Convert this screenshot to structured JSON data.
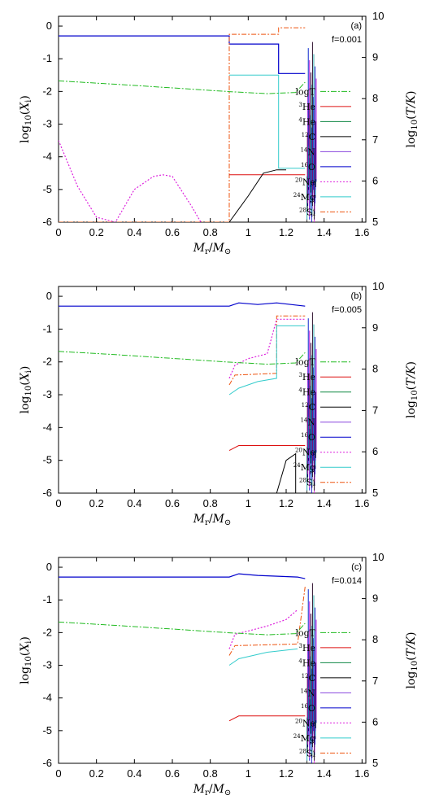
{
  "legend": [
    {
      "name": "logT",
      "mass": "",
      "label": "logT",
      "color": "#22bb22",
      "dash": "7 2 2 2",
      "width": 1
    },
    {
      "name": "3He",
      "mass": "3",
      "label": "He",
      "color": "#dd1111",
      "dash": "",
      "width": 1
    },
    {
      "name": "4He",
      "mass": "4",
      "label": "He",
      "color": "#118844",
      "dash": "",
      "width": 1
    },
    {
      "name": "12C",
      "mass": "12",
      "label": "C",
      "color": "#000000",
      "dash": "",
      "width": 1
    },
    {
      "name": "14N",
      "mass": "14",
      "label": "N",
      "color": "#8844dd",
      "dash": "",
      "width": 1
    },
    {
      "name": "16O",
      "mass": "16",
      "label": "O",
      "color": "#0000cc",
      "dash": "",
      "width": 1.2
    },
    {
      "name": "20Ne",
      "mass": "20",
      "label": "Ne",
      "color": "#dd22dd",
      "dash": "2 2",
      "width": 1.2
    },
    {
      "name": "24Mg",
      "mass": "24",
      "label": "Mg",
      "color": "#33cccc",
      "dash": "",
      "width": 1
    },
    {
      "name": "28Si",
      "mass": "28",
      "label": "Si",
      "color": "#ee5511",
      "dash": "6 2 2 2",
      "width": 1
    }
  ],
  "axes": {
    "xlabel": "M_r/M_⊙",
    "ylabel_left": "log10(X_i)",
    "ylabel_right": "log10(T/K)",
    "xlim": [
      0,
      1.62
    ],
    "ylim_left": [
      -6,
      0.3
    ],
    "ylim_right": [
      5,
      10
    ],
    "xticks": [
      "0",
      "0.2",
      "0.4",
      "0.6",
      "0.8",
      "1",
      "1.2",
      "1.4",
      "1.6"
    ],
    "yticks_left": [
      "0",
      "-1",
      "-2",
      "-3",
      "-4",
      "-5",
      "-6"
    ],
    "yticks_right": [
      "10",
      "9",
      "8",
      "7",
      "6",
      "5"
    ]
  },
  "chart_data": [
    {
      "type": "line",
      "panel": "(a)",
      "f_label": "f=0.001",
      "series": [
        {
          "name": "16O",
          "x": [
            0,
            0.9,
            0.9,
            1.16,
            1.16,
            1.3
          ],
          "y": [
            -0.3,
            -0.3,
            -0.55,
            -0.55,
            -1.45,
            -1.45
          ]
        },
        {
          "name": "28Si",
          "x": [
            0,
            0.9,
            0.9,
            1.16,
            1.16,
            1.3
          ],
          "y": [
            -6,
            -6,
            -0.25,
            -0.25,
            -0.05,
            -0.05
          ]
        },
        {
          "name": "24Mg",
          "x": [
            0.9,
            1.16,
            1.16,
            1.3
          ],
          "y": [
            -1.5,
            -1.5,
            -4.35,
            -4.35
          ]
        },
        {
          "name": "3He",
          "x": [
            0.9,
            1.3
          ],
          "y": [
            -4.55,
            -4.55
          ]
        },
        {
          "name": "12C",
          "x": [
            0.9,
            1.0,
            1.08,
            1.15,
            1.2
          ],
          "y": [
            -6,
            -5.2,
            -4.5,
            -4.4,
            -4.4
          ]
        },
        {
          "name": "20Ne",
          "x": [
            0,
            0.1,
            0.2,
            0.3,
            0.4,
            0.5,
            0.55,
            0.6,
            0.7,
            0.75
          ],
          "y": [
            -3.5,
            -4.9,
            -5.85,
            -6,
            -5,
            -4.6,
            -4.55,
            -4.6,
            -5.5,
            -6
          ]
        },
        {
          "name": "logT",
          "x": [
            0,
            0.3,
            0.6,
            0.9,
            1.1,
            1.25,
            1.3
          ],
          "y": [
            8.43,
            8.35,
            8.26,
            8.17,
            8.12,
            8.15,
            8.4
          ]
        }
      ]
    },
    {
      "type": "line",
      "panel": "(b)",
      "f_label": "f=0.005",
      "series": [
        {
          "name": "16O",
          "x": [
            0,
            0.9,
            0.95,
            1.05,
            1.15,
            1.3
          ],
          "y": [
            -0.3,
            -0.3,
            -0.2,
            -0.25,
            -0.2,
            -0.3
          ]
        },
        {
          "name": "20Ne",
          "x": [
            0.9,
            0.93,
            1.0,
            1.1,
            1.15,
            1.3
          ],
          "y": [
            -2.5,
            -2.1,
            -1.9,
            -1.75,
            -0.7,
            -0.7
          ]
        },
        {
          "name": "28Si",
          "x": [
            0.9,
            0.93,
            1.15,
            1.15,
            1.3
          ],
          "y": [
            -2.7,
            -2.4,
            -2.35,
            -0.6,
            -0.6
          ]
        },
        {
          "name": "24Mg",
          "x": [
            0.9,
            0.95,
            1.05,
            1.15,
            1.15,
            1.3
          ],
          "y": [
            -3.0,
            -2.8,
            -2.6,
            -2.5,
            -0.9,
            -0.9
          ]
        },
        {
          "name": "3He",
          "x": [
            0.9,
            0.95,
            1.3
          ],
          "y": [
            -4.7,
            -4.55,
            -4.55
          ]
        },
        {
          "name": "12C",
          "x": [
            1.15,
            1.2,
            1.25,
            1.25
          ],
          "y": [
            -6,
            -5.0,
            -4.8,
            -6
          ]
        },
        {
          "name": "logT",
          "x": [
            0,
            0.3,
            0.6,
            0.9,
            1.1,
            1.25,
            1.3
          ],
          "y": [
            8.43,
            8.35,
            8.26,
            8.17,
            8.12,
            8.15,
            8.4
          ]
        }
      ]
    },
    {
      "type": "line",
      "panel": "(c)",
      "f_label": "f=0.014",
      "series": [
        {
          "name": "16O",
          "x": [
            0,
            0.9,
            0.95,
            1.05,
            1.26,
            1.3
          ],
          "y": [
            -0.3,
            -0.3,
            -0.2,
            -0.25,
            -0.3,
            -0.35
          ]
        },
        {
          "name": "20Ne",
          "x": [
            0.9,
            0.93,
            1.0,
            1.1,
            1.2,
            1.26
          ],
          "y": [
            -2.5,
            -2.05,
            -1.95,
            -1.8,
            -1.6,
            -1.3
          ]
        },
        {
          "name": "28Si",
          "x": [
            0.9,
            0.93,
            1.26,
            1.3
          ],
          "y": [
            -2.7,
            -2.4,
            -2.35,
            -0.6
          ]
        },
        {
          "name": "24Mg",
          "x": [
            0.9,
            0.95,
            1.1,
            1.26
          ],
          "y": [
            -3.0,
            -2.8,
            -2.6,
            -2.5
          ]
        },
        {
          "name": "3He",
          "x": [
            0.9,
            0.95,
            1.3
          ],
          "y": [
            -4.7,
            -4.55,
            -4.55
          ]
        },
        {
          "name": "logT",
          "x": [
            0,
            0.3,
            0.6,
            0.9,
            1.1,
            1.25,
            1.3
          ],
          "y": [
            8.43,
            8.35,
            8.26,
            8.17,
            8.12,
            8.15,
            8.4
          ]
        }
      ]
    }
  ]
}
